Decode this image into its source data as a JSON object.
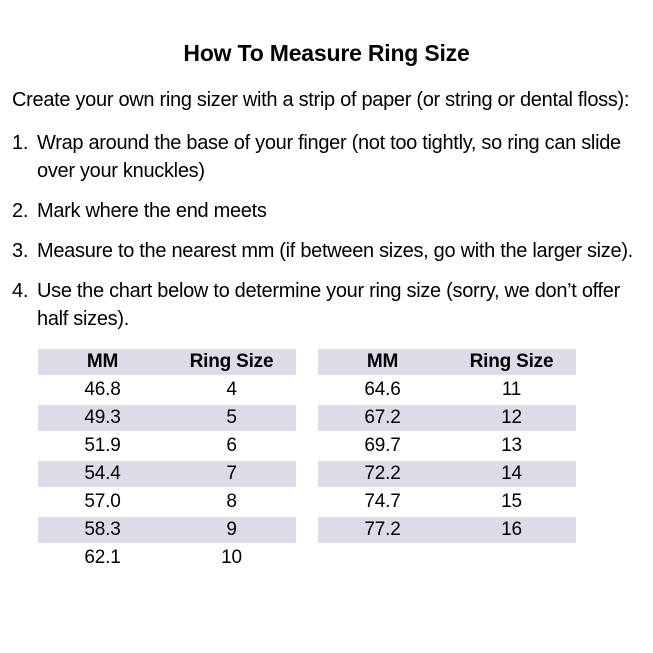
{
  "header": {
    "title": "How To Measure Ring Size"
  },
  "instructions": {
    "intro": "Create your own ring sizer with a strip of paper (or string or dental floss):",
    "steps": [
      {
        "num": "1.",
        "text": "Wrap around the base of your finger (not too tightly, so ring can slide over your knuckles)"
      },
      {
        "num": "2.",
        "text": "Mark where the end meets"
      },
      {
        "num": "3.",
        "text": "Measure to the nearest mm (if between sizes, go with the larger size)."
      },
      {
        "num": "4.",
        "text": "Use the chart below to determine your ring size (sorry, we don’t offer half sizes)."
      }
    ]
  },
  "size_chart": {
    "columns": [
      "MM",
      "Ring Size"
    ],
    "left": [
      [
        "46.8",
        "4"
      ],
      [
        "49.3",
        "5"
      ],
      [
        "51.9",
        "6"
      ],
      [
        "54.4",
        "7"
      ],
      [
        "57.0",
        "8"
      ],
      [
        "58.3",
        "9"
      ],
      [
        "62.1",
        "10"
      ]
    ],
    "right": [
      [
        "64.6",
        "11"
      ],
      [
        "67.2",
        "12"
      ],
      [
        "69.7",
        "13"
      ],
      [
        "72.2",
        "14"
      ],
      [
        "74.7",
        "15"
      ],
      [
        "77.2",
        "16"
      ]
    ],
    "colors": {
      "stripe": "#dedbe9",
      "text": "#000000",
      "background": "#ffffff"
    }
  }
}
